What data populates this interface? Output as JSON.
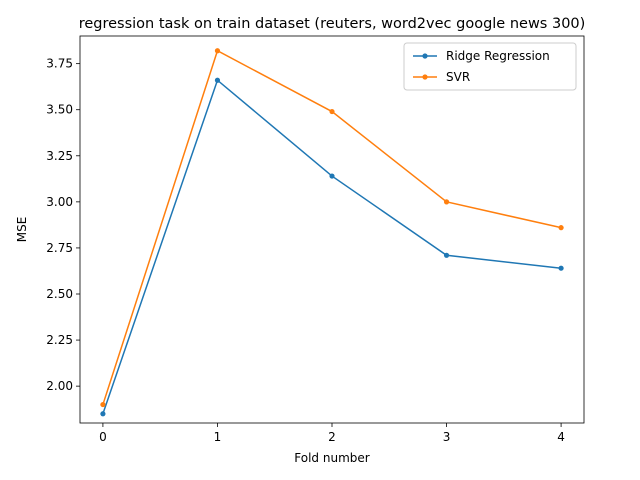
{
  "chart_data": {
    "type": "line",
    "title": "regression task on train dataset (reuters, word2vec google news 300)",
    "xlabel": "Fold number",
    "ylabel": "MSE",
    "x": [
      0,
      1,
      2,
      3,
      4
    ],
    "xlim": [
      -0.2,
      4.2
    ],
    "ylim": [
      1.8,
      3.9
    ],
    "xticks": [
      0,
      1,
      2,
      3,
      4
    ],
    "yticks": [
      2.0,
      2.25,
      2.5,
      2.75,
      3.0,
      3.25,
      3.5,
      3.75
    ],
    "grid": false,
    "legend_position": "upper-right",
    "series": [
      {
        "name": "Ridge Regression",
        "color": "#1f77b4",
        "marker": "circle",
        "values": [
          1.85,
          3.66,
          3.14,
          2.71,
          2.64
        ]
      },
      {
        "name": "SVR",
        "color": "#ff7f0e",
        "marker": "circle",
        "values": [
          1.9,
          3.82,
          3.49,
          3.0,
          2.86
        ]
      }
    ]
  }
}
